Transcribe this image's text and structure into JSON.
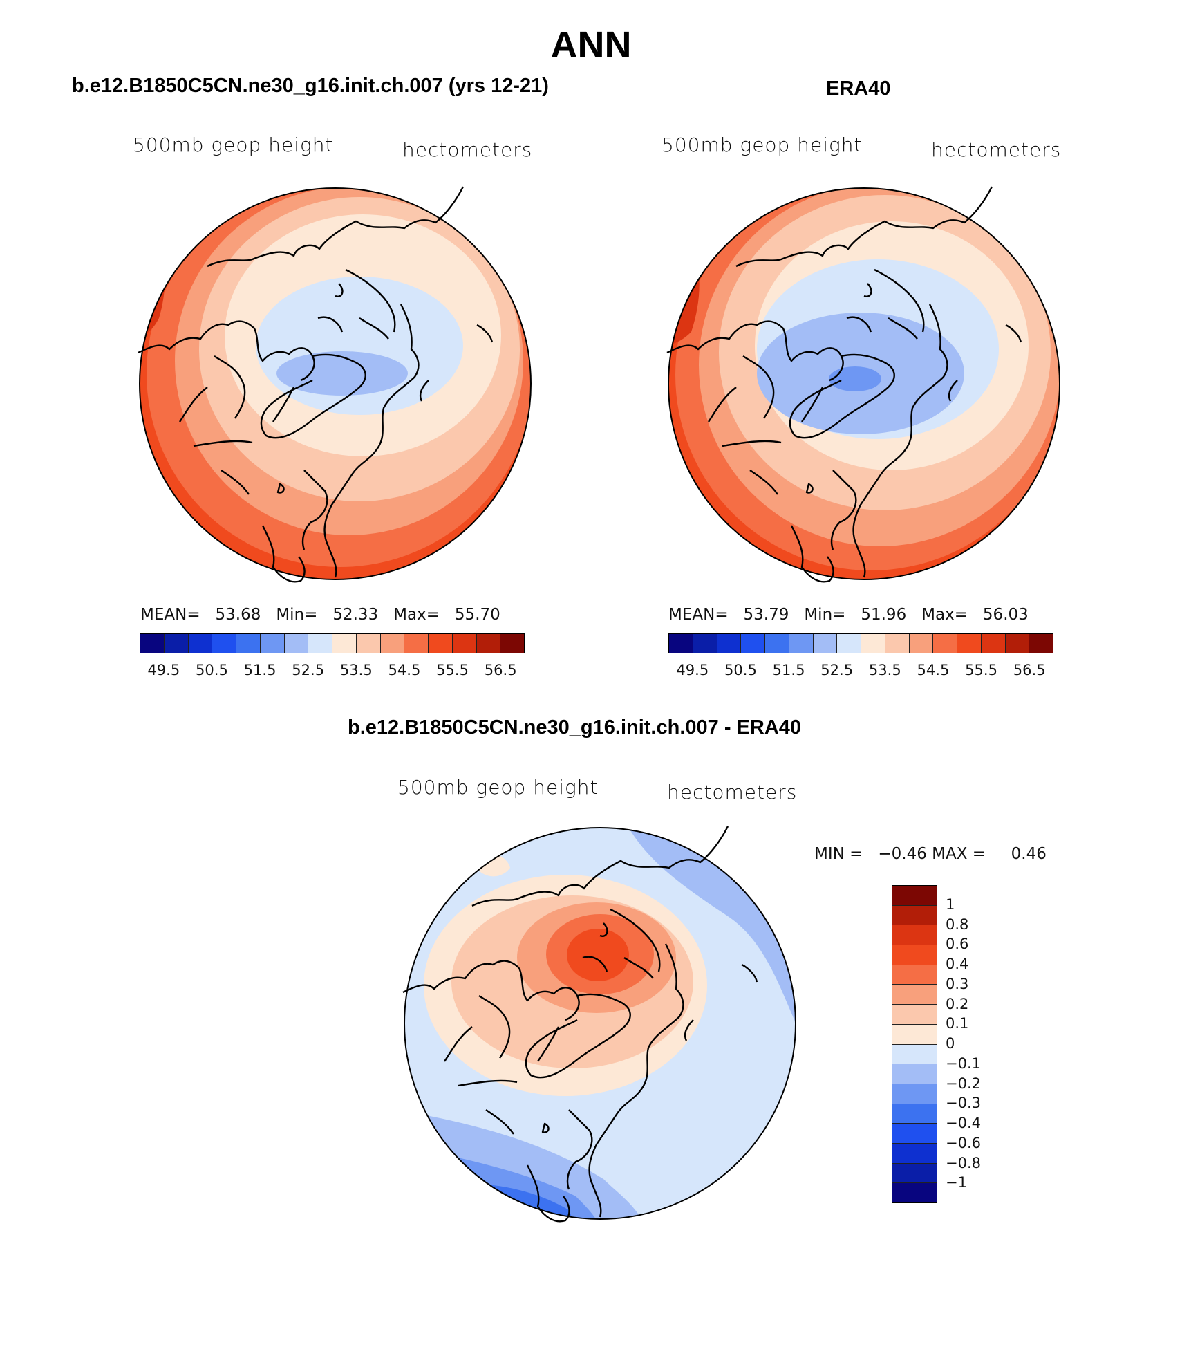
{
  "title": "ANN",
  "panels": [
    {
      "title": "b.e12.B1850C5CN.ne30_g16.init.ch.007 (yrs 12-21)",
      "variable": "500mb geop height",
      "units": "hectometers",
      "mean_label": "MEAN=",
      "mean": "53.68",
      "min_label": "Min=",
      "min": "52.33",
      "max_label": "Max=",
      "max": "55.70"
    },
    {
      "title": "ERA40",
      "variable": "500mb geop height",
      "units": "hectometers",
      "mean_label": "MEAN=",
      "mean": "53.79",
      "min_label": "Min=",
      "min": "51.96",
      "max_label": "Max=",
      "max": "56.03"
    },
    {
      "title": "b.e12.B1850C5CN.ne30_g16.init.ch.007 - ERA40",
      "variable": "500mb geop height",
      "units": "hectometers",
      "min_label": "MIN =",
      "min": "−0.46",
      "max_label": "MAX =",
      "max": "0.46"
    }
  ],
  "chart_data": [
    {
      "type": "heatmap",
      "projection": "north-polar-stereographic",
      "title": "b.e12.B1850C5CN.ne30_g16.init.ch.007 (yrs 12-21)",
      "field": "500mb geop height",
      "units": "hectometers",
      "mean": 53.68,
      "min": 52.33,
      "max": 55.7,
      "contour_levels": [
        49.5,
        50,
        50.5,
        51,
        51.5,
        52,
        52.5,
        53,
        53.5,
        54,
        54.5,
        55,
        55.5,
        56,
        56.5
      ],
      "colorbar_tick_labels": [
        "49.5",
        "50.5",
        "51.5",
        "52.5",
        "53.5",
        "54.5",
        "55.5",
        "56.5"
      ]
    },
    {
      "type": "heatmap",
      "projection": "north-polar-stereographic",
      "title": "ERA40",
      "field": "500mb geop height",
      "units": "hectometers",
      "mean": 53.79,
      "min": 51.96,
      "max": 56.03,
      "contour_levels": [
        49.5,
        50,
        50.5,
        51,
        51.5,
        52,
        52.5,
        53,
        53.5,
        54,
        54.5,
        55,
        55.5,
        56,
        56.5
      ],
      "colorbar_tick_labels": [
        "49.5",
        "50.5",
        "51.5",
        "52.5",
        "53.5",
        "54.5",
        "55.5",
        "56.5"
      ]
    },
    {
      "type": "heatmap",
      "projection": "north-polar-stereographic",
      "title": "b.e12.B1850C5CN.ne30_g16.init.ch.007 - ERA40",
      "field": "500mb geop height difference",
      "units": "hectometers",
      "min": -0.46,
      "max": 0.46,
      "contour_levels": [
        -1,
        -0.8,
        -0.6,
        -0.4,
        -0.3,
        -0.2,
        -0.1,
        0,
        0.1,
        0.2,
        0.3,
        0.4,
        0.6,
        0.8,
        1
      ],
      "colorbar_tick_labels": [
        "1",
        "0.8",
        "0.6",
        "0.4",
        "0.3",
        "0.2",
        "0.1",
        "0",
        "−0.1",
        "−0.2",
        "−0.3",
        "−0.4",
        "−0.6",
        "−0.8",
        "−1"
      ]
    }
  ],
  "colors": {
    "palette": [
      "#08057f",
      "#0a1ea8",
      "#0e30d0",
      "#1f50ef",
      "#3c72f0",
      "#6e97f3",
      "#a3bdf6",
      "#d6e6fb",
      "#fde8d6",
      "#fbc8ad",
      "#f8a07c",
      "#f56e45",
      "#f04a1e",
      "#dc3512",
      "#b21e08",
      "#7c0703"
    ]
  }
}
